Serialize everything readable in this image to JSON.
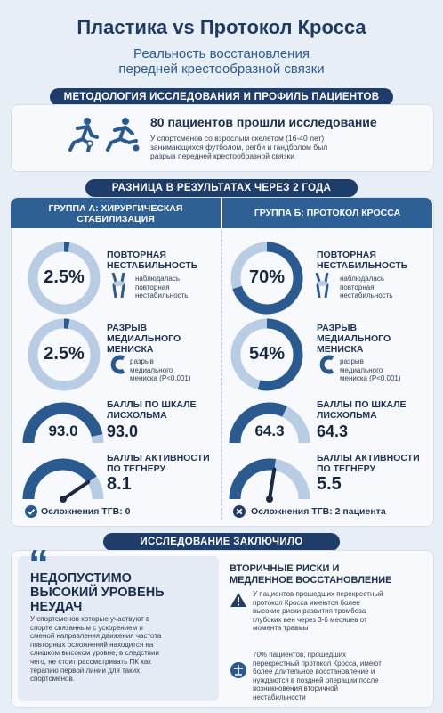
{
  "title": "Пластика vs Протокол Кросса",
  "subtitle_line1": "Реальность восстановления",
  "subtitle_line2": "передней крестообразной связки",
  "methodology": {
    "banner": "МЕТОДОЛОГИЯ ИССЛЕДОВАНИЯ И ПРОФИЛЬ ПАЦИЕНТОВ",
    "headline": "80 пациентов прошли исследование",
    "desc_line1": "У спортсменов со взрослым скелетом (16-40 лет)",
    "desc_line2": "занимающихся футболом, регби и гандболом был",
    "desc_line3": "разрыв передней крестообразной связки"
  },
  "results": {
    "banner": "РАЗНИЦА В РЕЗУЛЬТАТАХ ЧЕРЕЗ 2 ГОДА",
    "group_a": {
      "header_line1": "ГРУППА А: ХИРУРГИЧЕСКАЯ",
      "header_line2": "СТАБИЛИЗАЦИЯ",
      "instability_value": "2.5%",
      "instability_fraction": 0.025,
      "instability_title_line1": "ПОВТОРНАЯ",
      "instability_title_line2": "НЕСТАБИЛЬНОСТЬ",
      "instability_note_line1": "наблюдалась",
      "instability_note_line2": "повторная",
      "instability_note_line3": "нестабильность",
      "meniscus_value": "2.5%",
      "meniscus_fraction": 0.025,
      "meniscus_title_line1": "РАЗРЫВ",
      "meniscus_title_line2": "МЕДИАЛЬНОГО",
      "meniscus_title_line3": "МЕНИСКА",
      "meniscus_note_line1": "разрыв",
      "meniscus_note_line2": "медиального",
      "meniscus_note_line3": "мениска (P<0.001)",
      "lysholm_gauge": "93.0",
      "lysholm_value": "93.0",
      "lysholm_fraction": 0.93,
      "lysholm_title_line1": "БАЛЛЫ ПО ШКАЛЕ",
      "lysholm_title_line2": "ЛИСХОЛЬМА",
      "tegner_title_line1": "БАЛЛЫ АКТИВНОСТИ",
      "tegner_title_line2": "ПО ТЕГНЕРУ",
      "tegner_value": "8.1",
      "tegner_fraction": 0.81,
      "complication": "Осложнения ТГВ: 0"
    },
    "group_b": {
      "header": "ГРУППА Б: ПРОТОКОЛ КРОССА",
      "instability_value": "70%",
      "instability_fraction": 0.7,
      "instability_title_line1": "ПОВТОРНАЯ",
      "instability_title_line2": "НЕСТАБИЛЬНОСТЬ",
      "instability_note_line1": "наблюдалась",
      "instability_note_line2": "повторная",
      "instability_note_line3": "нестабильность",
      "meniscus_value": "54%",
      "meniscus_fraction": 0.54,
      "meniscus_title_line1": "РАЗРЫВ",
      "meniscus_title_line2": "МЕДИАЛЬНОГО",
      "meniscus_title_line3": "МЕНИСКА",
      "meniscus_note_line1": "разрыв",
      "meniscus_note_line2": "медиального",
      "meniscus_note_line3": "мениска (P<0.001)",
      "lysholm_gauge": "64.3",
      "lysholm_value": "64.3",
      "lysholm_fraction": 0.643,
      "lysholm_title_line1": "БАЛЛЫ ПО ШКАЛЕ",
      "lysholm_title_line2": "ЛИСХОЛЬМА",
      "tegner_title_line1": "БАЛЛЫ АКТИВНОСТИ",
      "tegner_title_line2": "ПО ТЕГНЕРУ",
      "tegner_value": "5.5",
      "tegner_fraction": 0.55,
      "complication": "Осложнения ТГВ: 2 пациента"
    }
  },
  "conclusion": {
    "banner": "ИССЛЕДОВАНИЕ ЗАКЛЮЧИЛО",
    "quote_mark": "“",
    "left_title_line1": "НЕДОПУСТИМО",
    "left_title_line2": "ВЫСОКИЙ УРОВЕНЬ",
    "left_title_line3": "НЕУДАЧ",
    "left_body_line1": "У спортсменов которые участвуют в",
    "left_body_line2": "спорте связанным с ускорением и",
    "left_body_line3": "сменой направления движения частота",
    "left_body_line4": "повторных осложнений находится на",
    "left_body_line5": "слишком высоком уровне, в следствии",
    "left_body_line6": "чего, не стоит рассматривать ПК как",
    "left_body_line7": "терапию первой линии для таких",
    "left_body_line8": "спортсменов.",
    "right_title_line1": "ВТОРИЧНЫЕ РИСКИ И",
    "right_title_line2": "МЕДЛЕННОЕ ВОССТАНОВЛЕНИЕ",
    "risk1_line1": "У пациентов прошедших перекрестный",
    "risk1_line2": "протокол Кросса имеются более",
    "risk1_line3": "высокие риски развития тромбоза",
    "risk1_line4": "глубоких вен через 3-6 месяцев от",
    "risk1_line5": "момента травмы",
    "risk2_line1": "70% пациентов, прошедших",
    "risk2_line2": "перекрестный протокол Кросса, имеют",
    "risk2_line3": "более длительное восстановление и",
    "risk2_line4": "нуждаются в поздней операции после",
    "risk2_line5": "возникновения вторичной",
    "risk2_line6": "нестабильности"
  },
  "colors": {
    "navy": "#1f3d6b",
    "blue": "#2e5f95",
    "ring_light": "#b8cde3",
    "ring_dark": "#2a5a8f"
  },
  "icons": [
    "runner-icon",
    "kick-icon",
    "knee-icon",
    "meniscus-icon",
    "check-icon",
    "x-icon",
    "warning-icon",
    "scale-icon",
    "quote-icon"
  ]
}
